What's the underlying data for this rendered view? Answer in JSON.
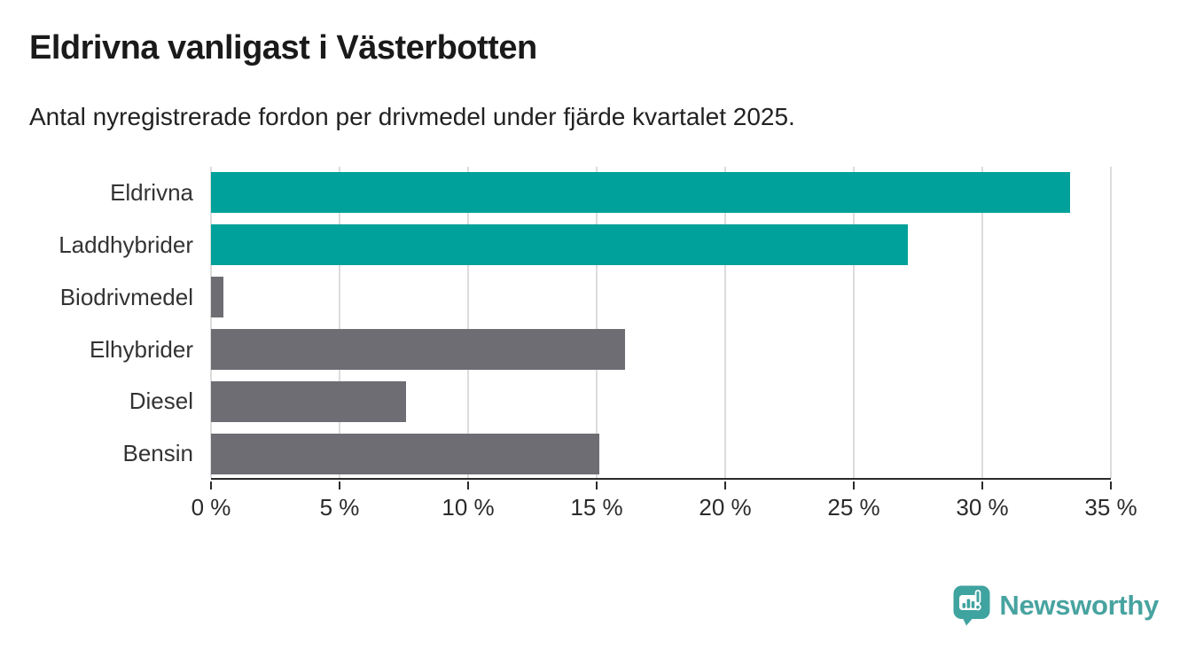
{
  "chart_data": {
    "type": "bar",
    "orientation": "horizontal",
    "title": "Eldrivna vanligast i Västerbotten",
    "subtitle": "Antal nyregistrerade fordon per drivmedel under fjärde kvartalet 2025.",
    "categories": [
      "Eldrivna",
      "Laddhybrider",
      "Biodrivmedel",
      "Elhybrider",
      "Diesel",
      "Bensin"
    ],
    "values": [
      33.4,
      27.1,
      0.5,
      16.1,
      7.6,
      15.1
    ],
    "unit": "%",
    "bar_colors": [
      "#00a19a",
      "#00a19a",
      "#6d6d73",
      "#6d6d73",
      "#6d6d73",
      "#6d6d73"
    ],
    "xlim": [
      0,
      35
    ],
    "x_ticks": [
      0,
      5,
      10,
      15,
      20,
      25,
      30,
      35
    ],
    "x_tick_labels": [
      "0 %",
      "5 %",
      "10 %",
      "15 %",
      "20 %",
      "25 %",
      "30 %",
      "35 %"
    ],
    "grid": true,
    "legend": false
  },
  "footer": {
    "brand": "Newsworthy"
  },
  "colors": {
    "accent": "#00a19a",
    "bar_gray": "#6d6d73",
    "grid": "#dcdcdc",
    "axis": "#2b2b2b",
    "title_text": "#1a1a1a",
    "body_text": "#333333",
    "logo": "#47a3a0"
  }
}
